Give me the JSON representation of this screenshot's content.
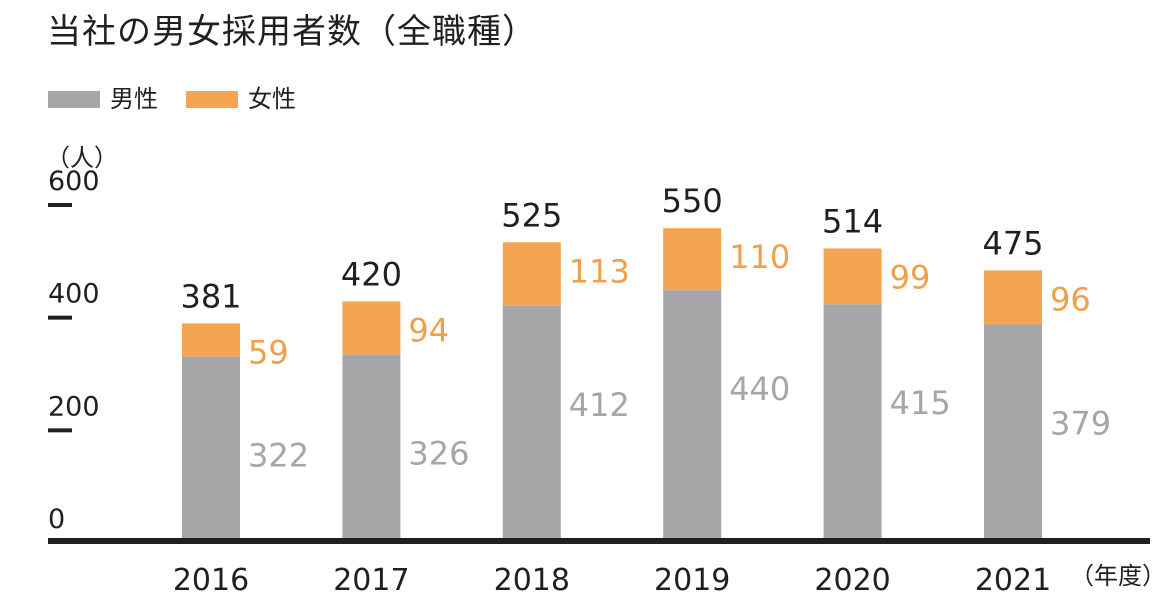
{
  "chart_data": {
    "type": "bar",
    "stacked": true,
    "title": "当社の男女採用者数（全職種）",
    "ylabel": "（人）",
    "xunit": "（年度）",
    "categories": [
      "2016",
      "2017",
      "2018",
      "2019",
      "2020",
      "2021"
    ],
    "series": [
      {
        "name": "男性",
        "values": [
          322,
          326,
          412,
          440,
          415,
          379
        ],
        "color": "#a6a6a8"
      },
      {
        "name": "女性",
        "values": [
          59,
          94,
          113,
          110,
          99,
          96
        ],
        "color": "#f5a552"
      }
    ],
    "totals": [
      381,
      420,
      525,
      550,
      514,
      475
    ],
    "ylim": [
      0,
      600
    ],
    "yticks": [
      0,
      200,
      400,
      600
    ],
    "grid": false,
    "legend_position": "top-left"
  },
  "colors": {
    "text": "#231f20",
    "male_label": "#a6a6a8",
    "female_label": "#f0a04b",
    "axis": "#231f20"
  }
}
